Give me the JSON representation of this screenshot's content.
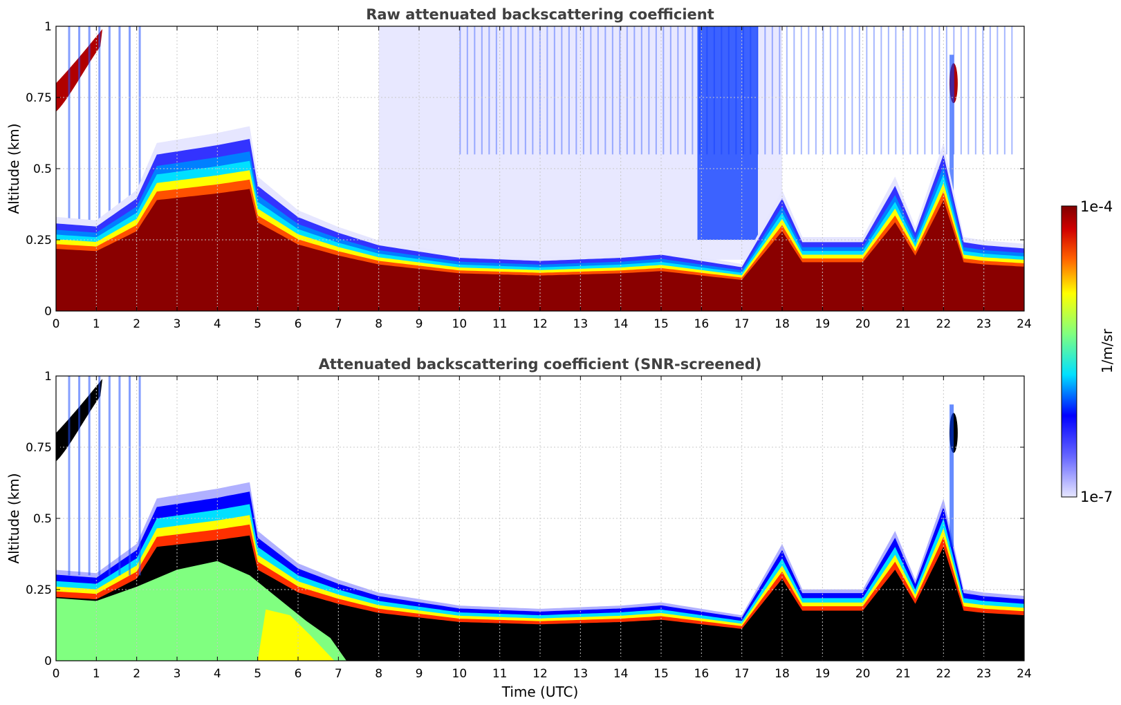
{
  "chart_data": [
    {
      "type": "heatmap",
      "title": "Raw attenuated backscattering coefficient",
      "xlabel": "",
      "ylabel": "Altitude (km)",
      "xlim": [
        0,
        24
      ],
      "ylim": [
        0,
        1
      ],
      "x_ticks": [
        "0",
        "1",
        "2",
        "3",
        "4",
        "5",
        "6",
        "7",
        "8",
        "9",
        "10",
        "11",
        "12",
        "13",
        "14",
        "15",
        "16",
        "17",
        "18",
        "19",
        "20",
        "21",
        "22",
        "23",
        "24"
      ],
      "y_ticks": [
        "0",
        "0.25",
        "0.5",
        "0.75",
        "1"
      ],
      "grid": true,
      "layer_top_km": [
        [
          0,
          0.28
        ],
        [
          1,
          0.27
        ],
        [
          2,
          0.36
        ],
        [
          2.5,
          0.5
        ],
        [
          3,
          0.51
        ],
        [
          4,
          0.53
        ],
        [
          4.8,
          0.55
        ],
        [
          5,
          0.4
        ],
        [
          6,
          0.3
        ],
        [
          7,
          0.25
        ],
        [
          8,
          0.21
        ],
        [
          9,
          0.19
        ],
        [
          10,
          0.17
        ],
        [
          12,
          0.16
        ],
        [
          14,
          0.17
        ],
        [
          15,
          0.18
        ],
        [
          16,
          0.16
        ],
        [
          17,
          0.14
        ],
        [
          18,
          0.36
        ],
        [
          18.5,
          0.22
        ],
        [
          19,
          0.22
        ],
        [
          20,
          0.22
        ],
        [
          20.8,
          0.4
        ],
        [
          21.3,
          0.25
        ],
        [
          22,
          0.5
        ],
        [
          22.5,
          0.22
        ],
        [
          23,
          0.21
        ],
        [
          24,
          0.2
        ]
      ]
    },
    {
      "type": "heatmap",
      "title": "Attenuated backscattering coefficient (SNR-screened)",
      "xlabel": "Time (UTC)",
      "ylabel": "Altitude (km)",
      "xlim": [
        0,
        24
      ],
      "ylim": [
        0,
        1
      ],
      "x_ticks": [
        "0",
        "1",
        "2",
        "3",
        "4",
        "5",
        "6",
        "7",
        "8",
        "9",
        "10",
        "11",
        "12",
        "13",
        "14",
        "15",
        "16",
        "17",
        "18",
        "19",
        "20",
        "21",
        "22",
        "23",
        "24"
      ],
      "y_ticks": [
        "0",
        "0.25",
        "0.5",
        "0.75",
        "1"
      ],
      "grid": true
    }
  ],
  "colorbar": {
    "label": "1/m/sr",
    "max_label": "1e-4",
    "min_label": "1e-7",
    "scale": "log",
    "colormap": [
      "#e6e6ff",
      "#0000ff",
      "#00ffff",
      "#80ff80",
      "#ffff00",
      "#ff0000",
      "#800000"
    ]
  }
}
